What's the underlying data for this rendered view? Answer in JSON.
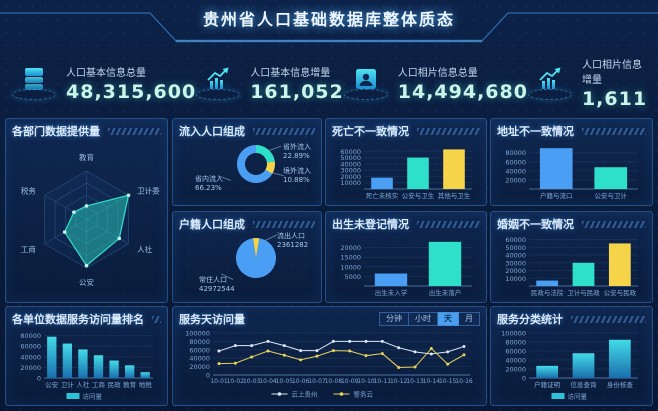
{
  "header": {
    "title": "贵州省人口基础数据库整体质态"
  },
  "colors": {
    "blue": "#4a9ff5",
    "teal": "#2ee0c9",
    "yellow": "#f6d44a",
    "line_white": "#dde9f8",
    "line_yellow": "#e9d35b",
    "accent_cyan": "#3fe0e8",
    "panel_border": "#3e7dc8"
  },
  "kpis": [
    {
      "label": "人口基本信息总量",
      "value": "48,315,600",
      "icon": "database-icon"
    },
    {
      "label": "人口基本信息增量",
      "value": "161,052",
      "icon": "trend-up-icon"
    },
    {
      "label": "人口相片信息总量",
      "value": "14,494,680",
      "icon": "portrait-icon"
    },
    {
      "label": "人口相片信息增量",
      "value": "1,611",
      "icon": "trend-up-icon"
    }
  ],
  "panels": {
    "radar": {
      "title": "各部门数据提供量"
    },
    "inflow": {
      "title": "流入人口组成"
    },
    "hukou": {
      "title": "户籍人口组成"
    },
    "death": {
      "title": "死亡不一致情况"
    },
    "address": {
      "title": "地址不一致情况"
    },
    "birth": {
      "title": "出生未登记情况"
    },
    "marriage": {
      "title": "婚姻不一致情况"
    },
    "rank": {
      "title": "各单位数据服务访问量排名"
    },
    "visits": {
      "title": "服务天访问量",
      "tabs": [
        "分钟",
        "小时",
        "天",
        "月"
      ],
      "active_tab_index": 2
    },
    "service": {
      "title": "服务分类统计"
    }
  },
  "chart_data": [
    {
      "id": "radar-dept",
      "type": "radar",
      "title": "各部门数据提供量",
      "categories": [
        "教育",
        "卫计委",
        "人社",
        "公安",
        "工商",
        "税务"
      ],
      "values": [
        28,
        100,
        78,
        95,
        52,
        30
      ],
      "max": 100
    },
    {
      "id": "inflow-donut",
      "type": "pie",
      "donut": true,
      "title": "流入人口组成",
      "start_angle": -90,
      "slices": [
        {
          "name": "省外流入",
          "value": 22.89,
          "display": "22.89%",
          "color": "#2ee0c9"
        },
        {
          "name": "境外流入",
          "value": 10.88,
          "display": "10.88%",
          "color": "#f6d44a"
        },
        {
          "name": "省内流入",
          "value": 66.23,
          "display": "66.23%",
          "color": "#4a9ff5"
        }
      ]
    },
    {
      "id": "hukou-pie",
      "type": "pie",
      "donut": false,
      "title": "户籍人口组成",
      "start_angle": -99,
      "slices": [
        {
          "name": "流出人口",
          "value": 2361282,
          "display": "2361282",
          "color": "#f6d44a"
        },
        {
          "name": "常住人口",
          "value": 42972544,
          "display": "42972544",
          "color": "#4a9ff5"
        }
      ]
    },
    {
      "id": "death-bar",
      "type": "bar",
      "title": "死亡不一致情况",
      "categories": [
        "死亡未核实",
        "公安与卫生",
        "其他与卫生"
      ],
      "values": [
        18000,
        50000,
        63000
      ],
      "colors": [
        "#4a9ff5",
        "#2ee0c9",
        "#f6d44a"
      ],
      "yticks": [
        10000,
        20000,
        30000,
        40000,
        50000,
        60000
      ],
      "ylim": [
        0,
        70000
      ]
    },
    {
      "id": "address-bar",
      "type": "bar",
      "title": "地址不一致情况",
      "categories": [
        "户籍与流口",
        "公安与卫计"
      ],
      "values": [
        90000,
        48000
      ],
      "colors": [
        "#4a9ff5",
        "#2ee0c9"
      ],
      "yticks": [
        20000,
        40000,
        60000,
        80000
      ],
      "ylim": [
        0,
        97000
      ]
    },
    {
      "id": "birth-bar",
      "type": "bar",
      "title": "出生未登记情况",
      "categories": [
        "出生未入学",
        "出生未落户"
      ],
      "values": [
        6500,
        23000
      ],
      "colors": [
        "#4a9ff5",
        "#2ee0c9"
      ],
      "yticks": [
        5000,
        10000,
        15000,
        20000
      ],
      "ylim": [
        0,
        25000
      ]
    },
    {
      "id": "marriage-bar",
      "type": "bar",
      "title": "婚姻不一致情况",
      "categories": [
        "民政与法院",
        "卫计与民政",
        "公安与民政"
      ],
      "values": [
        7000,
        30000,
        55000
      ],
      "colors": [
        "#4a9ff5",
        "#2ee0c9",
        "#f6d44a"
      ],
      "yticks": [
        10000,
        20000,
        30000,
        40000,
        50000,
        60000
      ],
      "ylim": [
        0,
        62000
      ]
    },
    {
      "id": "rank-bar",
      "type": "bar",
      "title": "各单位数据服务访问量排名",
      "categories": [
        "公安",
        "卫计",
        "人社",
        "工商",
        "民政",
        "教育",
        "地税"
      ],
      "values": [
        78000,
        65000,
        54000,
        43000,
        33000,
        24000,
        11000
      ],
      "colors": "tealgrad",
      "yticks": [
        0,
        20000,
        40000,
        60000,
        80000
      ],
      "ylim": [
        0,
        85000
      ],
      "legend": "访问量"
    },
    {
      "id": "visits-line",
      "type": "line",
      "title": "服务天访问量",
      "x": [
        "10-01",
        "10-02",
        "10-03",
        "10-04",
        "10-05",
        "10-06",
        "10-07",
        "10-08",
        "10-09",
        "10-10",
        "10-11",
        "10-12",
        "10-13",
        "10-14",
        "10-15",
        "10-16"
      ],
      "series": [
        {
          "name": "云上贵州",
          "color": "#dde9f8",
          "values": [
            57000,
            70000,
            70000,
            80000,
            70000,
            58000,
            58000,
            80000,
            80000,
            80000,
            80000,
            65000,
            55000,
            50000,
            55000,
            68000
          ]
        },
        {
          "name": "警务云",
          "color": "#e9d35b",
          "values": [
            27000,
            28000,
            43000,
            57000,
            47000,
            36000,
            45000,
            58000,
            57000,
            46000,
            51000,
            18000,
            19000,
            63000,
            26000,
            48000
          ]
        }
      ],
      "yticks": [
        0,
        20000,
        40000,
        60000,
        80000,
        100000
      ],
      "ylim": [
        0,
        100000
      ],
      "legend_position": "bottom"
    },
    {
      "id": "service-bar",
      "type": "bar",
      "title": "服务分类统计",
      "categories": [
        "户籍证明",
        "信息查询",
        "身份核查"
      ],
      "values": [
        27000,
        55000,
        85000
      ],
      "colors": "tealgrad",
      "yticks": [
        0,
        20000,
        40000,
        60000,
        80000,
        100000
      ],
      "ylim": [
        0,
        100000
      ],
      "legend": "访问量"
    }
  ]
}
